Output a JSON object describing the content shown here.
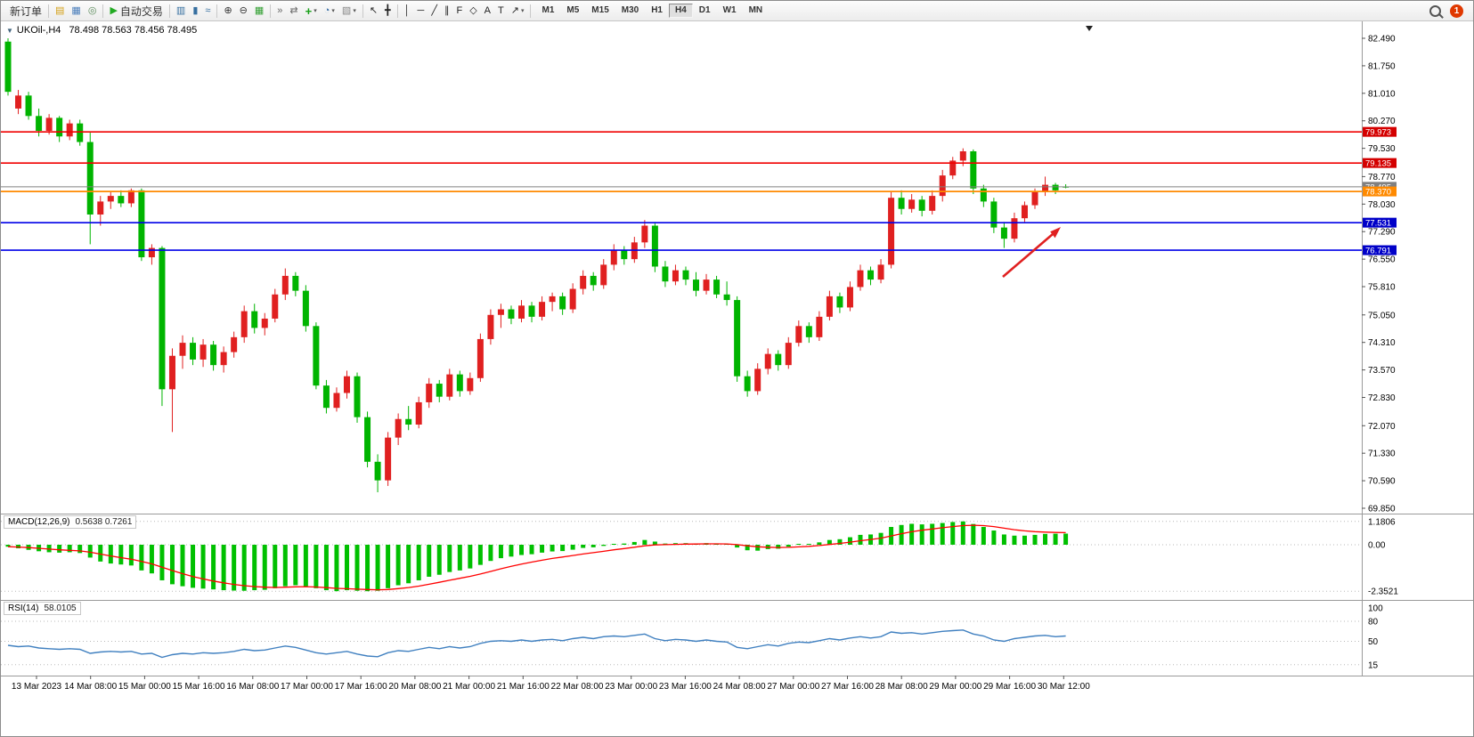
{
  "toolbar": {
    "new_order": {
      "label": "新订单"
    },
    "auto_trading": {
      "label": "自动交易"
    },
    "timeframes": {
      "items": [
        "M1",
        "M5",
        "M15",
        "M30",
        "H1",
        "H4",
        "D1",
        "W1",
        "MN"
      ],
      "active": "H4"
    },
    "notification": {
      "count": "1"
    },
    "items": [
      {
        "type": "labelbtn",
        "name": "new-order-button",
        "label": "新订单"
      },
      {
        "type": "sep"
      },
      {
        "type": "icon",
        "name": "market-watch-button",
        "icon_name": "market-watch-icon",
        "glyph": "▤",
        "color": "#d4a017"
      },
      {
        "type": "icon",
        "name": "data-window-button",
        "icon_name": "data-window-icon",
        "glyph": "▦",
        "color": "#4a7ebb"
      },
      {
        "type": "icon",
        "name": "navigator-button",
        "icon_name": "navigator-icon",
        "glyph": "◎",
        "color": "#5a8a5a"
      },
      {
        "type": "sep"
      },
      {
        "type": "labelbtn",
        "name": "auto-trading-button",
        "icon_name": "auto-trading-icon",
        "glyph": "▶",
        "color": "#22aa22",
        "label": "自动交易"
      },
      {
        "type": "sep"
      },
      {
        "type": "icon",
        "name": "bars-chart-button",
        "icon_name": "bars-chart-icon",
        "glyph": "▥",
        "color": "#356e9f"
      },
      {
        "type": "icon",
        "name": "candles-chart-button",
        "icon_name": "candles-chart-icon",
        "glyph": "▮",
        "color": "#356e9f"
      },
      {
        "type": "icon",
        "name": "line-chart-button",
        "icon_name": "line-chart-icon",
        "glyph": "≈",
        "color": "#356e9f"
      },
      {
        "type": "sep"
      },
      {
        "type": "icon",
        "name": "zoom-in-button",
        "icon_name": "zoom-in-icon",
        "glyph": "⊕",
        "color": "#333333"
      },
      {
        "type": "icon",
        "name": "zoom-out-button",
        "icon_name": "zoom-out-icon",
        "glyph": "⊖",
        "color": "#333333"
      },
      {
        "type": "icon",
        "name": "tile-windows-button",
        "icon_name": "tile-windows-icon",
        "glyph": "▦",
        "color": "#2f9e2f"
      },
      {
        "type": "sep"
      },
      {
        "type": "icon",
        "name": "auto-scroll-button",
        "icon_name": "auto-scroll-icon",
        "glyph": "»",
        "color": "#666666"
      },
      {
        "type": "icon",
        "name": "chart-shift-button",
        "icon_name": "chart-shift-icon",
        "glyph": "⇄",
        "color": "#666666"
      },
      {
        "type": "icon",
        "name": "indicators-button",
        "icon_name": "indicators-icon",
        "glyph": "+",
        "color": "#18a018",
        "bold": true,
        "dropdown": true
      },
      {
        "type": "icon",
        "name": "periods-button",
        "icon_name": "periods-icon",
        "glyph": "◔",
        "color": "#3a6ea5",
        "dropdown": true
      },
      {
        "type": "icon",
        "name": "templates-button",
        "icon_name": "templates-icon",
        "glyph": "▧",
        "color": "#888888",
        "dropdown": true
      },
      {
        "type": "sep"
      },
      {
        "type": "icon",
        "name": "cursor-button",
        "icon_name": "cursor-icon",
        "glyph": "↖",
        "color": "#222222"
      },
      {
        "type": "icon",
        "name": "crosshair-button",
        "icon_name": "crosshair-icon",
        "glyph": "╋",
        "color": "#222222"
      },
      {
        "type": "sep"
      },
      {
        "type": "icon",
        "name": "vertical-line-button",
        "icon_name": "vertical-line-icon",
        "glyph": "│",
        "color": "#222222"
      },
      {
        "type": "icon",
        "name": "horizontal-line-button",
        "icon_name": "horizontal-line-icon",
        "glyph": "─",
        "color": "#222222"
      },
      {
        "type": "icon",
        "name": "trendline-button",
        "icon_name": "trendline-icon",
        "glyph": "╱",
        "color": "#222222"
      },
      {
        "type": "icon",
        "name": "channel-button",
        "icon_name": "channel-icon",
        "glyph": "∥",
        "color": "#222222"
      },
      {
        "type": "icon",
        "name": "fibonacci-button",
        "icon_name": "fibonacci-icon",
        "glyph": "F",
        "color": "#222222"
      },
      {
        "type": "icon",
        "name": "shapes-button",
        "icon_name": "shapes-icon",
        "glyph": "◇",
        "color": "#222222"
      },
      {
        "type": "icon",
        "name": "text-button",
        "icon_name": "text-icon",
        "glyph": "A",
        "color": "#222222"
      },
      {
        "type": "icon",
        "name": "text-label-button",
        "icon_name": "text-label-icon",
        "glyph": "T",
        "color": "#222222"
      },
      {
        "type": "icon",
        "name": "arrows-button",
        "icon_name": "arrows-icon",
        "glyph": "↗",
        "color": "#222222",
        "dropdown": true
      },
      {
        "type": "sep"
      },
      {
        "type": "timeframes"
      },
      {
        "type": "spacer"
      },
      {
        "type": "search"
      },
      {
        "type": "badge",
        "count": "1"
      }
    ]
  },
  "chart": {
    "header": {
      "symbol": "UKOil-,H4",
      "ohlc": "78.498 78.563 78.456 78.495"
    },
    "price_axis_labels": [
      "82.490",
      "81.750",
      "81.010",
      "80.270",
      "79.530",
      "78.770",
      "78.030",
      "77.290",
      "76.550",
      "75.810",
      "75.050",
      "74.310",
      "73.570",
      "72.830",
      "72.070",
      "71.330",
      "70.590",
      "69.850"
    ],
    "time_axis_labels": [
      "13 Mar 2023",
      "14 Mar 08:00",
      "15 Mar 00:00",
      "15 Mar 16:00",
      "16 Mar 08:00",
      "17 Mar 00:00",
      "17 Mar 16:00",
      "20 Mar 08:00",
      "21 Mar 00:00",
      "21 Mar 16:00",
      "22 Mar 08:00",
      "23 Mar 00:00",
      "23 Mar 16:00",
      "24 Mar 08:00",
      "27 Mar 00:00",
      "27 Mar 16:00",
      "28 Mar 08:00",
      "29 Mar 00:00",
      "29 Mar 16:00",
      "30 Mar 12:00"
    ],
    "levels": [
      {
        "name": "resistance-line-1",
        "price": 79.973,
        "label": "79.973",
        "color": "#f00000",
        "tag": "#d40000",
        "width": 1.6
      },
      {
        "name": "resistance-line-2",
        "price": 79.135,
        "label": "79.135",
        "color": "#f00000",
        "tag": "#d40000",
        "width": 1.6
      },
      {
        "name": "bid-price-line",
        "price": 78.495,
        "label": "78.495",
        "color": "#808080",
        "tag": "#808080",
        "width": 1
      },
      {
        "name": "pivot-line",
        "price": 78.37,
        "label": "78.370",
        "color": "#ff8a00",
        "tag": "#ff8a00",
        "width": 1.8
      },
      {
        "name": "support-line-1",
        "price": 77.531,
        "label": "77.531",
        "color": "#0000e8",
        "tag": "#0000c8",
        "width": 1.6
      },
      {
        "name": "support-line-2",
        "price": 76.791,
        "label": "76.791",
        "color": "#0000e8",
        "tag": "#0000c8",
        "width": 1.6
      }
    ],
    "annotation_arrow": {
      "color": "#e02020"
    },
    "indicators": {
      "macd": {
        "label": "MACD(12,26,9)",
        "values_text": "0.5638 0.7261",
        "axis_labels": [
          "1.1806",
          "0.00",
          "-2.3521"
        ],
        "axis_values": [
          1.1806,
          0,
          -2.3521
        ]
      },
      "rsi": {
        "label": "RSI(14)",
        "value_text": "58.0105",
        "axis_labels": [
          "100",
          "80",
          "50",
          "15"
        ],
        "axis_values": [
          100,
          80,
          50,
          15
        ],
        "levels": [
          80,
          50,
          15
        ]
      }
    }
  },
  "chart_data": {
    "type": "candlestick",
    "symbol": "UKOil-",
    "timeframe": "H4",
    "title": "UKOil-,H4",
    "last_ohlc": {
      "open": 78.498,
      "high": 78.563,
      "low": 78.456,
      "close": 78.495
    },
    "ylim": [
      69.85,
      82.49
    ],
    "bull_color": "#e02020",
    "bear_color": "#00b400",
    "macd_color": "#00c000",
    "signal_color": "#ff0000",
    "rsi_color": "#4080c0",
    "horizontal_levels": [
      79.973,
      79.135,
      78.495,
      78.37,
      77.531,
      76.791
    ],
    "candles": [
      [
        82.4,
        82.49,
        80.95,
        81.05
      ],
      [
        80.6,
        81.1,
        80.45,
        80.95
      ],
      [
        80.95,
        81.05,
        80.3,
        80.4
      ],
      [
        80.4,
        80.6,
        79.85,
        80.0
      ],
      [
        80.0,
        80.45,
        79.9,
        80.35
      ],
      [
        80.35,
        80.4,
        79.7,
        79.85
      ],
      [
        79.85,
        80.3,
        79.75,
        80.2
      ],
      [
        80.2,
        80.3,
        79.6,
        79.7
      ],
      [
        79.7,
        79.95,
        76.95,
        77.75
      ],
      [
        77.75,
        78.25,
        77.45,
        78.1
      ],
      [
        78.1,
        78.35,
        77.9,
        78.25
      ],
      [
        78.25,
        78.4,
        77.95,
        78.05
      ],
      [
        78.05,
        78.45,
        77.95,
        78.4
      ],
      [
        78.4,
        78.45,
        76.5,
        76.6
      ],
      [
        76.6,
        76.95,
        76.4,
        76.85
      ],
      [
        76.85,
        76.9,
        72.6,
        73.05
      ],
      [
        73.05,
        74.15,
        71.9,
        73.95
      ],
      [
        73.95,
        74.5,
        73.6,
        74.3
      ],
      [
        74.3,
        74.45,
        73.7,
        73.85
      ],
      [
        73.85,
        74.4,
        73.65,
        74.25
      ],
      [
        74.25,
        74.35,
        73.55,
        73.7
      ],
      [
        73.7,
        74.2,
        73.5,
        74.05
      ],
      [
        74.05,
        74.6,
        73.9,
        74.45
      ],
      [
        74.45,
        75.3,
        74.3,
        75.15
      ],
      [
        75.15,
        75.35,
        74.55,
        74.7
      ],
      [
        74.7,
        75.1,
        74.5,
        74.95
      ],
      [
        74.95,
        75.75,
        74.85,
        75.6
      ],
      [
        75.6,
        76.3,
        75.45,
        76.1
      ],
      [
        76.1,
        76.2,
        75.55,
        75.7
      ],
      [
        75.7,
        75.85,
        74.6,
        74.75
      ],
      [
        74.75,
        74.85,
        73.05,
        73.15
      ],
      [
        73.15,
        73.3,
        72.4,
        72.55
      ],
      [
        72.55,
        73.1,
        72.45,
        72.95
      ],
      [
        72.95,
        73.55,
        72.8,
        73.4
      ],
      [
        73.4,
        73.5,
        72.15,
        72.3
      ],
      [
        72.3,
        72.45,
        70.95,
        71.1
      ],
      [
        71.1,
        71.3,
        70.28,
        70.6
      ],
      [
        70.6,
        71.9,
        70.45,
        71.75
      ],
      [
        71.75,
        72.4,
        71.55,
        72.25
      ],
      [
        72.25,
        72.6,
        71.95,
        72.1
      ],
      [
        72.1,
        72.85,
        72.0,
        72.7
      ],
      [
        72.7,
        73.35,
        72.55,
        73.2
      ],
      [
        73.2,
        73.3,
        72.7,
        72.85
      ],
      [
        72.85,
        73.6,
        72.75,
        73.45
      ],
      [
        73.45,
        73.55,
        72.85,
        73.0
      ],
      [
        73.0,
        73.5,
        72.9,
        73.35
      ],
      [
        73.35,
        74.55,
        73.25,
        74.4
      ],
      [
        74.4,
        75.2,
        74.25,
        75.05
      ],
      [
        75.05,
        75.35,
        74.7,
        75.2
      ],
      [
        75.2,
        75.3,
        74.8,
        74.95
      ],
      [
        74.95,
        75.45,
        74.85,
        75.3
      ],
      [
        75.3,
        75.4,
        74.85,
        75.0
      ],
      [
        75.0,
        75.55,
        74.9,
        75.4
      ],
      [
        75.4,
        75.65,
        75.15,
        75.55
      ],
      [
        75.55,
        75.65,
        75.05,
        75.2
      ],
      [
        75.2,
        75.9,
        75.1,
        75.75
      ],
      [
        75.75,
        76.25,
        75.6,
        76.1
      ],
      [
        76.1,
        76.2,
        75.7,
        75.85
      ],
      [
        75.85,
        76.55,
        75.75,
        76.4
      ],
      [
        76.4,
        76.95,
        76.25,
        76.8
      ],
      [
        76.8,
        76.9,
        76.4,
        76.55
      ],
      [
        76.55,
        77.15,
        76.45,
        77.0
      ],
      [
        77.0,
        77.6,
        76.85,
        77.45
      ],
      [
        77.45,
        77.55,
        76.2,
        76.35
      ],
      [
        76.35,
        76.5,
        75.8,
        75.95
      ],
      [
        75.95,
        76.4,
        75.85,
        76.25
      ],
      [
        76.25,
        76.35,
        75.85,
        76.0
      ],
      [
        76.0,
        76.2,
        75.55,
        75.7
      ],
      [
        75.7,
        76.15,
        75.6,
        76.0
      ],
      [
        76.0,
        76.1,
        75.5,
        75.6
      ],
      [
        75.6,
        75.95,
        75.3,
        75.45
      ],
      [
        75.45,
        75.55,
        73.25,
        73.4
      ],
      [
        73.4,
        73.55,
        72.85,
        73.0
      ],
      [
        73.0,
        73.75,
        72.9,
        73.6
      ],
      [
        73.6,
        74.15,
        73.45,
        74.0
      ],
      [
        74.0,
        74.1,
        73.55,
        73.7
      ],
      [
        73.7,
        74.45,
        73.6,
        74.3
      ],
      [
        74.3,
        74.9,
        74.2,
        74.75
      ],
      [
        74.75,
        74.85,
        74.3,
        74.45
      ],
      [
        74.45,
        75.15,
        74.35,
        75.0
      ],
      [
        75.0,
        75.7,
        74.9,
        75.55
      ],
      [
        75.55,
        75.65,
        75.1,
        75.25
      ],
      [
        75.25,
        75.95,
        75.15,
        75.8
      ],
      [
        75.8,
        76.4,
        75.7,
        76.25
      ],
      [
        76.25,
        76.35,
        75.85,
        76.0
      ],
      [
        76.0,
        76.55,
        75.9,
        76.4
      ],
      [
        76.4,
        78.35,
        76.3,
        78.2
      ],
      [
        78.2,
        78.4,
        77.75,
        77.9
      ],
      [
        77.9,
        78.3,
        77.8,
        78.15
      ],
      [
        78.15,
        78.25,
        77.7,
        77.85
      ],
      [
        77.85,
        78.4,
        77.75,
        78.25
      ],
      [
        78.25,
        78.95,
        78.1,
        78.8
      ],
      [
        78.8,
        79.3,
        78.7,
        79.2
      ],
      [
        79.2,
        79.53,
        79.05,
        79.45
      ],
      [
        79.45,
        79.5,
        78.3,
        78.45
      ],
      [
        78.45,
        78.55,
        77.95,
        78.1
      ],
      [
        78.1,
        78.2,
        77.25,
        77.4
      ],
      [
        77.4,
        77.55,
        76.85,
        77.1
      ],
      [
        77.1,
        77.8,
        77.0,
        77.65
      ],
      [
        77.65,
        78.1,
        77.55,
        78.0
      ],
      [
        78.0,
        78.45,
        77.9,
        78.35
      ],
      [
        78.35,
        78.77,
        78.25,
        78.55
      ],
      [
        78.55,
        78.6,
        78.3,
        78.4
      ],
      [
        78.498,
        78.563,
        78.456,
        78.495
      ]
    ],
    "macd_histogram": [
      -0.1,
      -0.18,
      -0.26,
      -0.33,
      -0.38,
      -0.4,
      -0.38,
      -0.42,
      -0.65,
      -0.85,
      -0.95,
      -1.0,
      -1.05,
      -1.3,
      -1.45,
      -1.8,
      -2.0,
      -2.1,
      -2.18,
      -2.22,
      -2.26,
      -2.3,
      -2.32,
      -2.33,
      -2.3,
      -2.28,
      -2.2,
      -2.1,
      -2.05,
      -2.1,
      -2.2,
      -2.3,
      -2.35,
      -2.3,
      -2.33,
      -2.35,
      -2.33,
      -2.2,
      -2.05,
      -1.95,
      -1.8,
      -1.62,
      -1.52,
      -1.38,
      -1.3,
      -1.2,
      -1.02,
      -0.82,
      -0.68,
      -0.6,
      -0.52,
      -0.48,
      -0.4,
      -0.34,
      -0.32,
      -0.25,
      -0.16,
      -0.13,
      -0.06,
      0.04,
      0.06,
      0.14,
      0.24,
      0.16,
      0.06,
      0.08,
      0.08,
      0.05,
      0.08,
      0.05,
      0.02,
      -0.14,
      -0.28,
      -0.3,
      -0.22,
      -0.2,
      -0.1,
      0.0,
      0.02,
      0.12,
      0.24,
      0.28,
      0.38,
      0.5,
      0.52,
      0.6,
      0.9,
      1.0,
      1.06,
      1.03,
      1.06,
      1.1,
      1.15,
      1.18,
      1.05,
      0.9,
      0.72,
      0.52,
      0.46,
      0.46,
      0.5,
      0.55,
      0.56,
      0.5638
    ],
    "macd_signal_period": 9,
    "rsi_values": [
      44,
      42,
      43,
      40,
      39,
      38,
      39,
      38,
      32,
      34,
      35,
      34,
      35,
      31,
      32,
      26,
      30,
      32,
      31,
      33,
      32,
      33,
      35,
      38,
      36,
      37,
      40,
      43,
      41,
      37,
      33,
      31,
      33,
      35,
      31,
      28,
      27,
      33,
      36,
      35,
      38,
      41,
      39,
      42,
      40,
      42,
      47,
      50,
      51,
      50,
      52,
      50,
      52,
      53,
      51,
      54,
      56,
      54,
      57,
      58,
      57,
      59,
      61,
      54,
      51,
      53,
      52,
      50,
      52,
      50,
      49,
      41,
      39,
      42,
      45,
      43,
      47,
      49,
      48,
      51,
      54,
      52,
      55,
      57,
      55,
      57,
      64,
      62,
      63,
      61,
      63,
      65,
      66,
      67,
      61,
      58,
      52,
      50,
      54,
      56,
      58,
      59,
      57,
      58.01
    ]
  }
}
